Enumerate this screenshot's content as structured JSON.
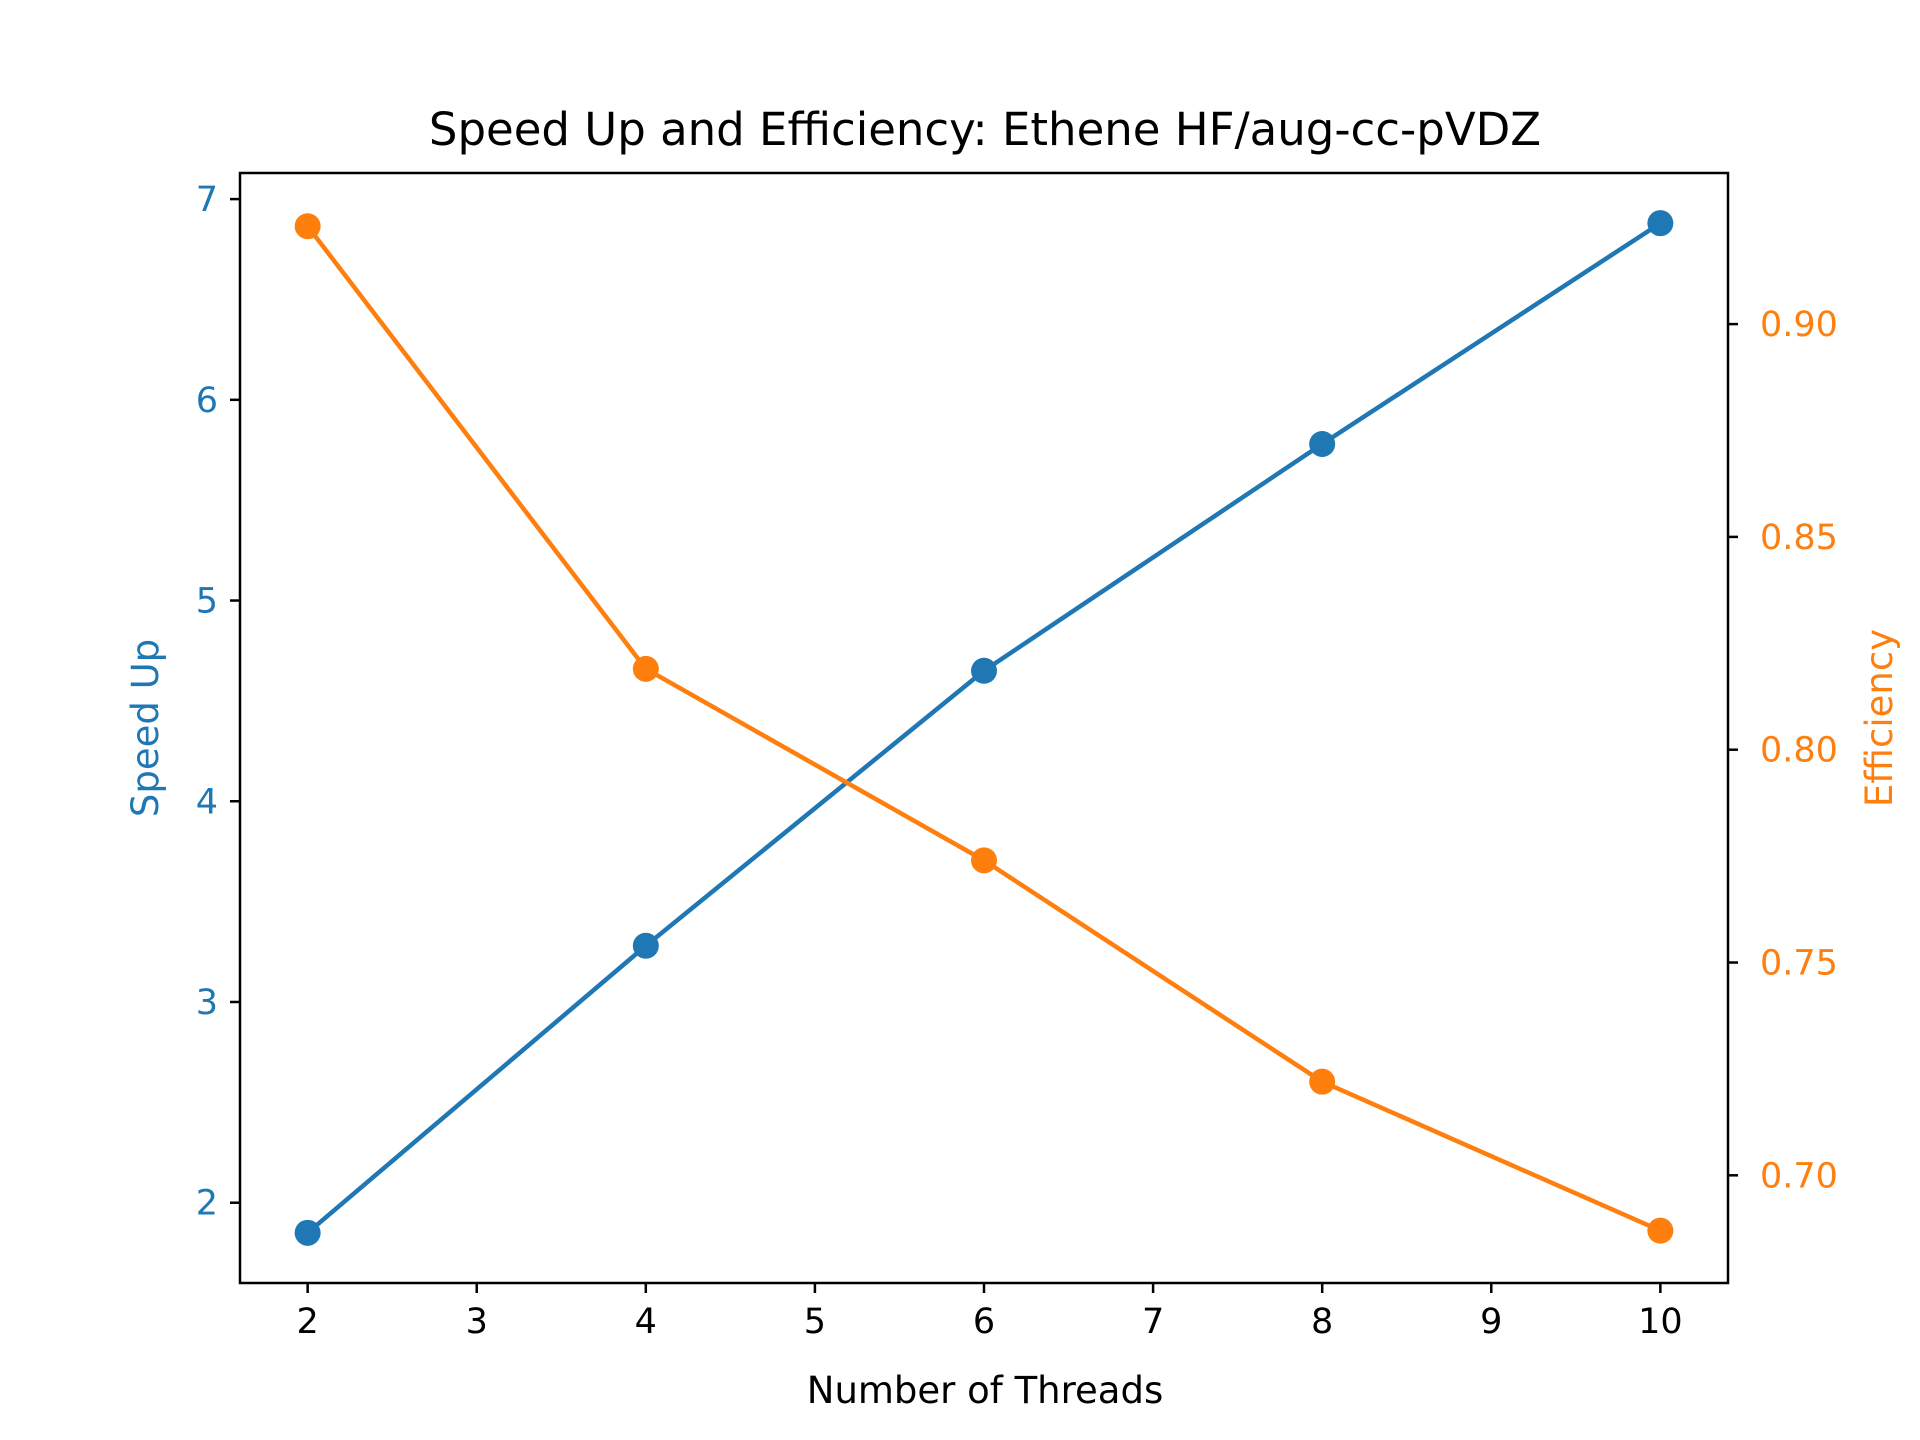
{
  "chart_data": {
    "type": "line",
    "title": "Speed Up and Efficiency: Ethene HF/aug-cc-pVDZ",
    "xlabel": "Number of Threads",
    "ylabel_left": "Speed Up",
    "ylabel_right": "Efficiency",
    "x": [
      2,
      4,
      6,
      8,
      10
    ],
    "xlim": [
      1.6,
      10.4
    ],
    "xticks": [
      "2",
      "3",
      "4",
      "5",
      "6",
      "7",
      "8",
      "9",
      "10"
    ],
    "ylim_left": [
      1.6,
      7.13
    ],
    "yticks_left": [
      "2",
      "3",
      "4",
      "5",
      "6",
      "7"
    ],
    "ylim_right": [
      0.6747,
      0.9355
    ],
    "yticks_right": [
      "0.70",
      "0.75",
      "0.80",
      "0.85",
      "0.90"
    ],
    "grid": false,
    "series": [
      {
        "name": "Speed Up",
        "axis": "left",
        "color": "#1f77b4",
        "values": [
          1.85,
          3.28,
          4.65,
          5.78,
          6.88
        ]
      },
      {
        "name": "Efficiency",
        "axis": "right",
        "color": "#ff7f0e",
        "values": [
          0.923,
          0.819,
          0.774,
          0.722,
          0.687
        ]
      }
    ]
  }
}
